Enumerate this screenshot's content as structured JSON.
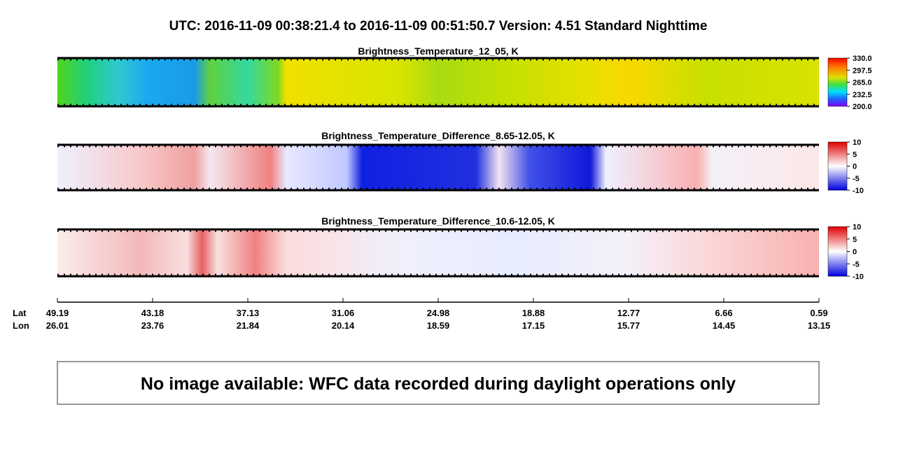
{
  "header": {
    "title": "UTC:  2016-11-09   00:38:21.4  to  2016-11-09   00:51:50.7    Version: 4.51  Standard Nighttime"
  },
  "panels": [
    {
      "title": "Brightness_Temperature_12_05, K",
      "clim": [
        200,
        330
      ],
      "ticks": [
        {
          "value": 330,
          "label": "330.0"
        },
        {
          "value": 297.5,
          "label": "297.5"
        },
        {
          "value": 265,
          "label": "265.0"
        },
        {
          "value": 232.5,
          "label": "232.5"
        },
        {
          "value": 200,
          "label": "200.0"
        }
      ]
    },
    {
      "title": "Brightness_Temperature_Difference_8.65-12.05, K",
      "clim": [
        -10,
        10
      ],
      "ticks": [
        10,
        5,
        0,
        -5,
        -10
      ]
    },
    {
      "title": "Brightness_Temperature_Difference_10.6-12.05, K",
      "clim": [
        -10,
        10
      ],
      "ticks": [
        10,
        5,
        0,
        -5,
        -10
      ]
    }
  ],
  "axis": {
    "lat_label": "Lat",
    "lon_label": "Lon",
    "lat": [
      49.19,
      43.18,
      37.13,
      31.06,
      24.98,
      18.88,
      12.77,
      6.66,
      0.59
    ],
    "lon": [
      26.01,
      23.76,
      21.84,
      20.14,
      18.59,
      17.15,
      15.77,
      14.45,
      13.15
    ]
  },
  "message": "No image available: WFC data recorded during daylight operations only"
}
